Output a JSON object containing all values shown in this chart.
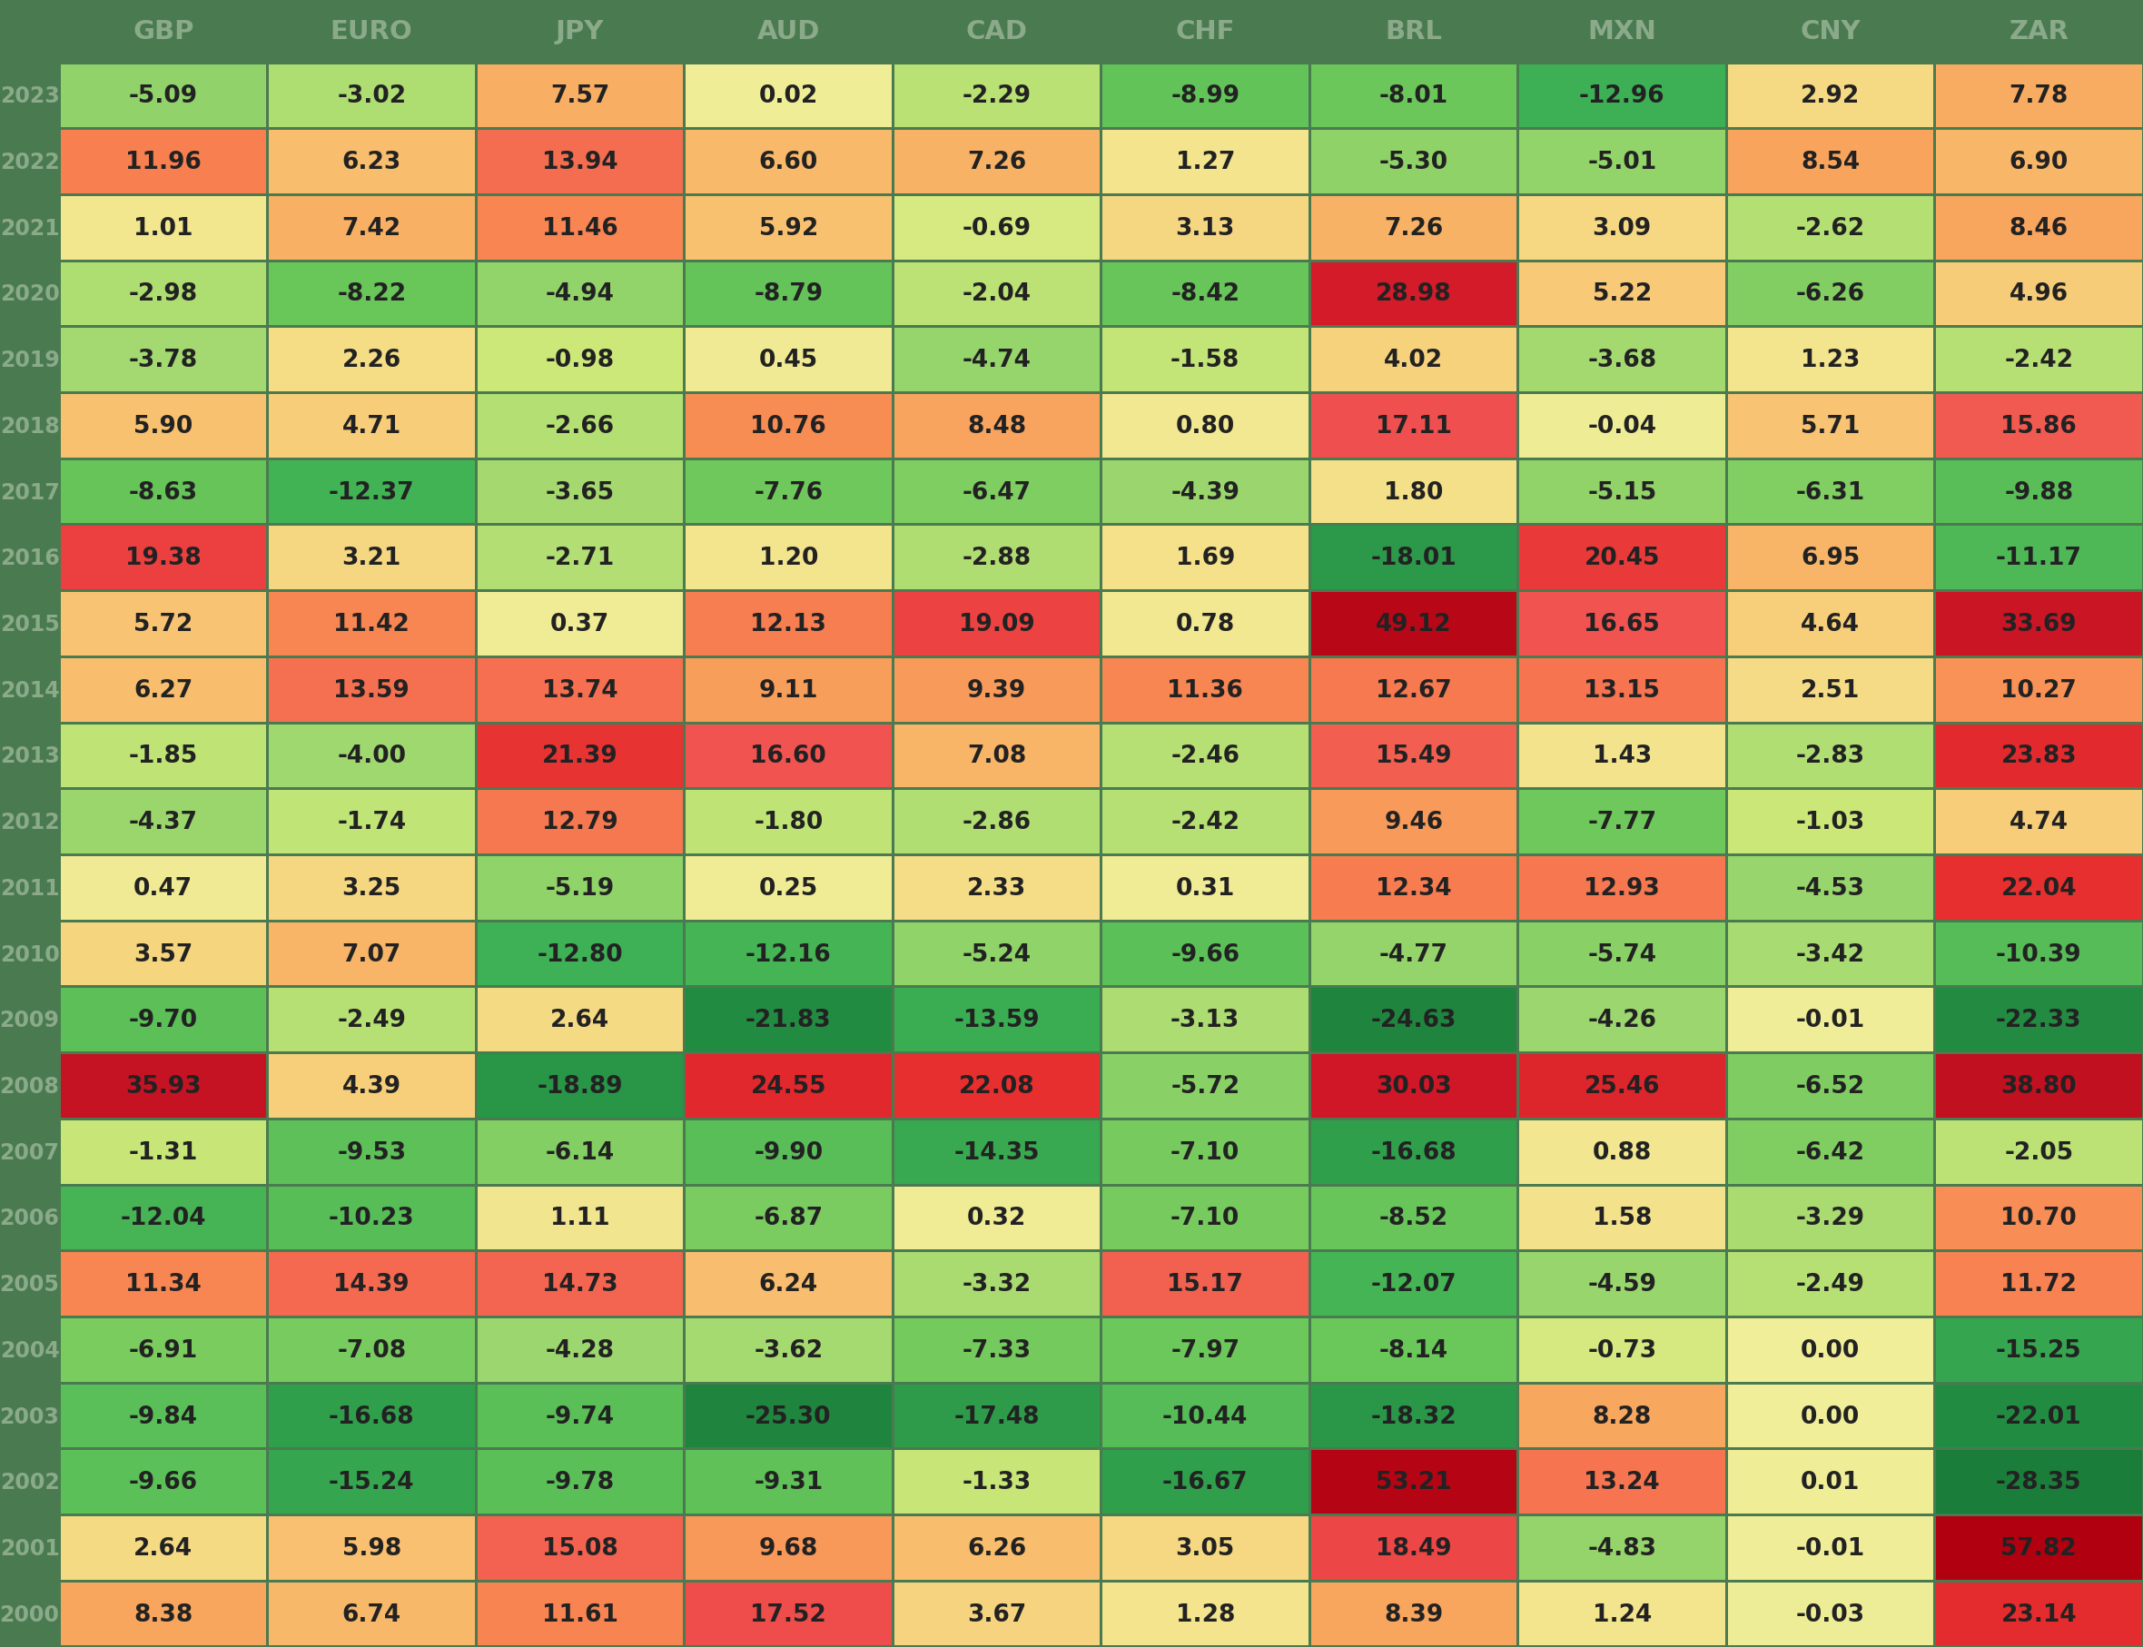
{
  "columns": [
    "GBP",
    "EURO",
    "JPY",
    "AUD",
    "CAD",
    "CHF",
    "BRL",
    "MXN",
    "CNY",
    "ZAR"
  ],
  "years": [
    2023,
    2022,
    2021,
    2020,
    2019,
    2018,
    2017,
    2016,
    2015,
    2014,
    2013,
    2012,
    2011,
    2010,
    2009,
    2008,
    2007,
    2006,
    2005,
    2004,
    2003,
    2002,
    2001,
    2000
  ],
  "data": {
    "2023": [
      -5.09,
      -3.02,
      7.57,
      0.02,
      -2.29,
      -8.99,
      -8.01,
      -12.96,
      2.92,
      7.78
    ],
    "2022": [
      11.96,
      6.23,
      13.94,
      6.6,
      7.26,
      1.27,
      -5.3,
      -5.01,
      8.54,
      6.9
    ],
    "2021": [
      1.01,
      7.42,
      11.46,
      5.92,
      -0.69,
      3.13,
      7.26,
      3.09,
      -2.62,
      8.46
    ],
    "2020": [
      -2.98,
      -8.22,
      -4.94,
      -8.79,
      -2.04,
      -8.42,
      28.98,
      5.22,
      -6.26,
      4.96
    ],
    "2019": [
      -3.78,
      2.26,
      -0.98,
      0.45,
      -4.74,
      -1.58,
      4.02,
      -3.68,
      1.23,
      -2.42
    ],
    "2018": [
      5.9,
      4.71,
      -2.66,
      10.76,
      8.48,
      0.8,
      17.11,
      -0.04,
      5.71,
      15.86
    ],
    "2017": [
      -8.63,
      -12.37,
      -3.65,
      -7.76,
      -6.47,
      -4.39,
      1.8,
      -5.15,
      -6.31,
      -9.88
    ],
    "2016": [
      19.38,
      3.21,
      -2.71,
      1.2,
      -2.88,
      1.69,
      -18.01,
      20.45,
      6.95,
      -11.17
    ],
    "2015": [
      5.72,
      11.42,
      0.37,
      12.13,
      19.09,
      0.78,
      49.12,
      16.65,
      4.64,
      33.69
    ],
    "2014": [
      6.27,
      13.59,
      13.74,
      9.11,
      9.39,
      11.36,
      12.67,
      13.15,
      2.51,
      10.27
    ],
    "2013": [
      -1.85,
      -4.0,
      21.39,
      16.6,
      7.08,
      -2.46,
      15.49,
      1.43,
      -2.83,
      23.83
    ],
    "2012": [
      -4.37,
      -1.74,
      12.79,
      -1.8,
      -2.86,
      -2.42,
      9.46,
      -7.77,
      -1.03,
      4.74
    ],
    "2011": [
      0.47,
      3.25,
      -5.19,
      0.25,
      2.33,
      0.31,
      12.34,
      12.93,
      -4.53,
      22.04
    ],
    "2010": [
      3.57,
      7.07,
      -12.8,
      -12.16,
      -5.24,
      -9.66,
      -4.77,
      -5.74,
      -3.42,
      -10.39
    ],
    "2009": [
      -9.7,
      -2.49,
      2.64,
      -21.83,
      -13.59,
      -3.13,
      -24.63,
      -4.26,
      -0.01,
      -22.33
    ],
    "2008": [
      35.93,
      4.39,
      -18.89,
      24.55,
      22.08,
      -5.72,
      30.03,
      25.46,
      -6.52,
      38.8
    ],
    "2007": [
      -1.31,
      -9.53,
      -6.14,
      -9.9,
      -14.35,
      -7.1,
      -16.68,
      0.88,
      -6.42,
      -2.05
    ],
    "2006": [
      -12.04,
      -10.23,
      1.11,
      -6.87,
      0.32,
      -7.1,
      -8.52,
      1.58,
      -3.29,
      10.7
    ],
    "2005": [
      11.34,
      14.39,
      14.73,
      6.24,
      -3.32,
      15.17,
      -12.07,
      -4.59,
      -2.49,
      11.72
    ],
    "2004": [
      -6.91,
      -7.08,
      -4.28,
      -3.62,
      -7.33,
      -7.97,
      -8.14,
      -0.73,
      0.0,
      -15.25
    ],
    "2003": [
      -9.84,
      -16.68,
      -9.74,
      -25.3,
      -17.48,
      -10.44,
      -18.32,
      8.28,
      0.0,
      -22.01
    ],
    "2002": [
      -9.66,
      -15.24,
      -9.78,
      -9.31,
      -1.33,
      -16.67,
      53.21,
      13.24,
      0.01,
      -28.35
    ],
    "2001": [
      2.64,
      5.98,
      15.08,
      9.68,
      6.26,
      3.05,
      18.49,
      -4.83,
      -0.01,
      57.82
    ],
    "2000": [
      8.38,
      6.74,
      11.61,
      17.52,
      3.67,
      1.28,
      8.39,
      1.24,
      -0.03,
      23.14
    ]
  },
  "outer_bg": "#4a7a50",
  "header_text_color": "#8aaa8a",
  "year_text_color": "#8aaa8a",
  "cell_text_color": "#222222",
  "header_fontsize": 21,
  "year_fontsize": 17,
  "cell_fontsize": 19,
  "color_stops": {
    "neg_deep": [
      -30,
      "#1a7a38"
    ],
    "neg_mid": [
      -15,
      "#2a9a48"
    ],
    "neg_light": [
      -8,
      "#5ec45a"
    ],
    "neg_pale": [
      -3,
      "#aad870"
    ],
    "zero": [
      0,
      "#f0ee98"
    ],
    "pos_pale": [
      5,
      "#f8d080"
    ],
    "pos_mid": [
      12,
      "#f89060"
    ],
    "pos_strong": [
      22,
      "#f04040"
    ],
    "pos_deep": [
      35,
      "#d01828"
    ],
    "pos_max": [
      60,
      "#b80010"
    ]
  }
}
